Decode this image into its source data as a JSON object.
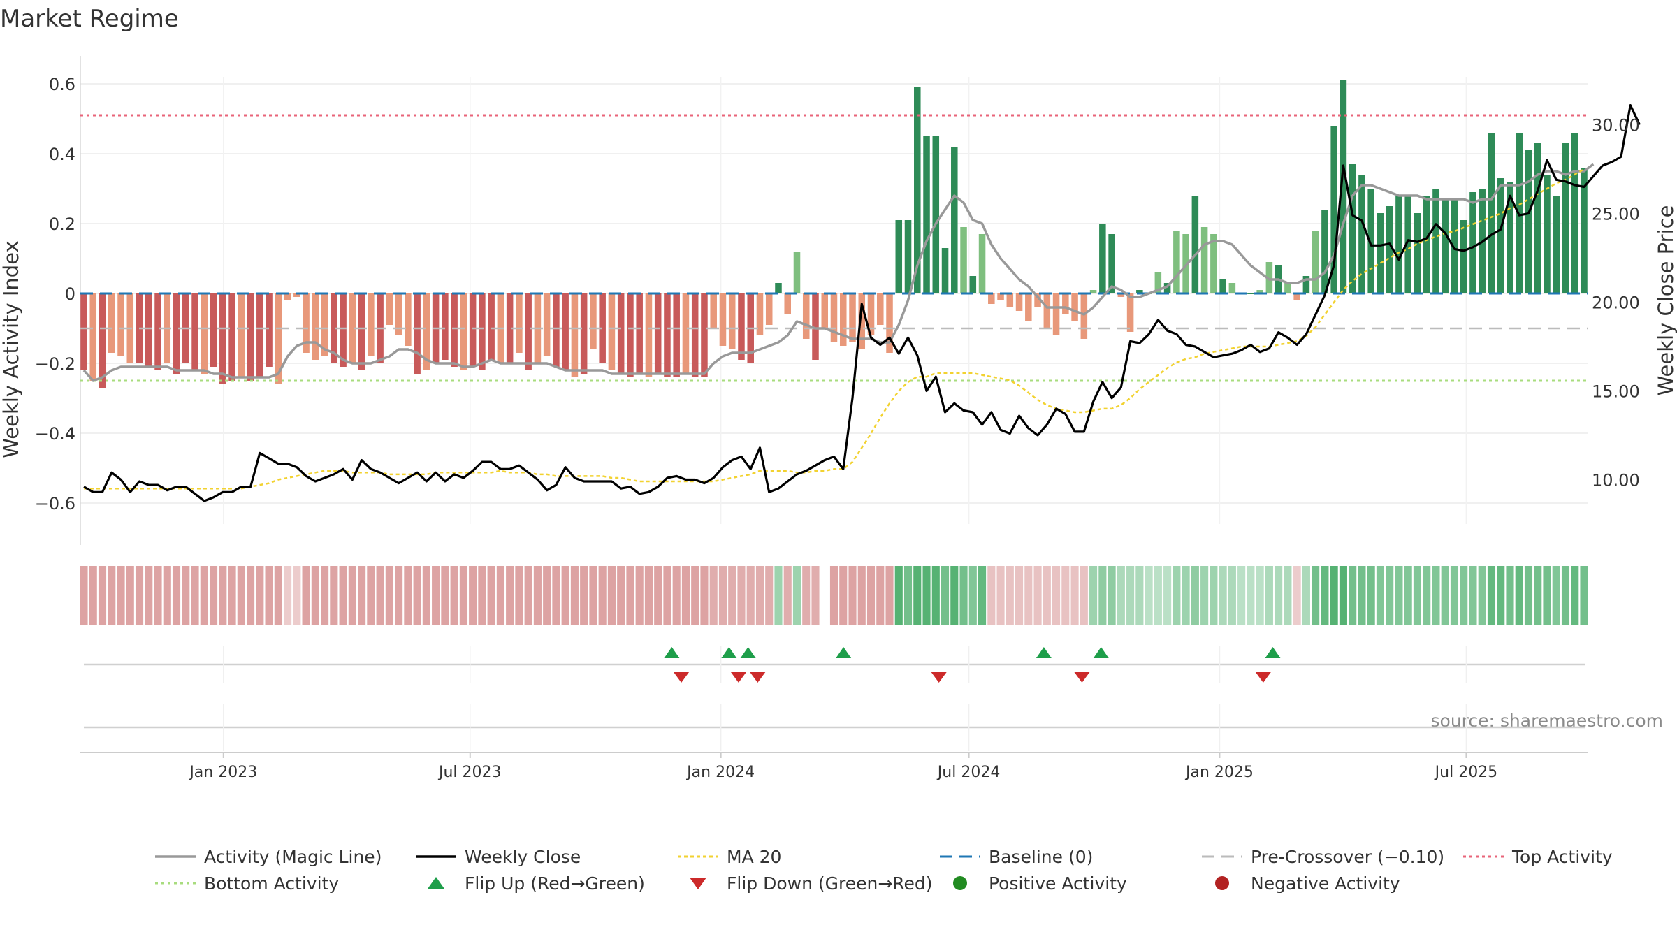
{
  "chart_data": {
    "type": "bar",
    "title": "Market Regime",
    "source": "source: sharemaestro.com",
    "left_axis": {
      "label": "Weekly Activity Index",
      "range": [
        -0.66,
        0.62
      ],
      "ticks": [
        0.6,
        0.4,
        0.2,
        0,
        -0.2,
        -0.4,
        -0.6
      ],
      "tick_labels": [
        "0.6",
        "0.4",
        "0.2",
        "0",
        "−0.2",
        "−0.4",
        "−0.6"
      ]
    },
    "right_axis": {
      "label": "Weekly Close Price",
      "range": [
        7.5,
        32.7
      ],
      "ticks": [
        30,
        25,
        20,
        15,
        10
      ],
      "tick_labels": [
        "30.00",
        "25.00",
        "20.00",
        "15.00",
        "10.00"
      ]
    },
    "x_axis": {
      "start": "2022-09-18",
      "end": "2025-09-28",
      "ticks": [
        {
          "date": "2023-01-01",
          "label": "Jan 2023"
        },
        {
          "date": "2023-07-01",
          "label": "Jul 2023"
        },
        {
          "date": "2024-01-01",
          "label": "Jan 2024"
        },
        {
          "date": "2024-07-01",
          "label": "Jul 2024"
        },
        {
          "date": "2025-01-01",
          "label": "Jan 2025"
        },
        {
          "date": "2025-07-01",
          "label": "Jul 2025"
        }
      ]
    },
    "reference_lines": {
      "top_activity": 0.51,
      "bottom_activity": -0.25,
      "baseline": 0,
      "pre_crossover": -0.1
    },
    "colors": {
      "strong_positive": "#2e8b57",
      "weak_positive": "#7fbf7f",
      "strong_negative": "#c85a5a",
      "weak_negative": "#e8987a",
      "magic_line": "#999999",
      "close": "#000000",
      "ma20": "#f2d230",
      "baseline": "#1f77b4",
      "pre_crossover": "#bbbbbb",
      "top": "#e8647a",
      "bottom": "#a8dc7e",
      "flip_up": "#1e9e4a",
      "flip_down": "#cc2a2a",
      "positive_dot": "#228b22",
      "negative_dot": "#b22222"
    },
    "weekly_activity": [
      -0.22,
      -0.25,
      -0.27,
      -0.17,
      -0.18,
      -0.2,
      -0.2,
      -0.21,
      -0.22,
      -0.2,
      -0.23,
      -0.2,
      -0.22,
      -0.23,
      -0.21,
      -0.26,
      -0.25,
      -0.24,
      -0.25,
      -0.24,
      -0.21,
      -0.26,
      -0.02,
      -0.01,
      -0.17,
      -0.19,
      -0.18,
      -0.2,
      -0.21,
      -0.2,
      -0.22,
      -0.18,
      -0.2,
      -0.09,
      -0.12,
      -0.15,
      -0.23,
      -0.22,
      -0.2,
      -0.19,
      -0.21,
      -0.22,
      -0.21,
      -0.22,
      -0.19,
      -0.2,
      -0.2,
      -0.17,
      -0.22,
      -0.2,
      -0.18,
      -0.21,
      -0.22,
      -0.24,
      -0.23,
      -0.16,
      -0.2,
      -0.22,
      -0.23,
      -0.24,
      -0.23,
      -0.24,
      -0.23,
      -0.24,
      -0.24,
      -0.23,
      -0.24,
      -0.24,
      -0.1,
      -0.15,
      -0.16,
      -0.19,
      -0.2,
      -0.12,
      -0.09,
      0.03,
      -0.06,
      0.12,
      -0.13,
      -0.19,
      -0.1,
      -0.14,
      -0.15,
      -0.14,
      -0.16,
      -0.12,
      -0.09,
      -0.17,
      0.21,
      0.21,
      0.59,
      0.45,
      0.45,
      0.13,
      0.42,
      0.19,
      0.05,
      0.17,
      -0.03,
      -0.02,
      -0.04,
      -0.05,
      -0.08,
      -0.04,
      -0.1,
      -0.12,
      -0.06,
      -0.08,
      -0.13,
      0.01,
      0.2,
      0.17,
      -0.01,
      -0.11,
      0.01,
      0.0,
      0.06,
      0.03,
      0.18,
      0.17,
      0.28,
      0.19,
      0.17,
      0.04,
      0.03,
      0.0,
      0.0,
      0.01,
      0.09,
      0.08,
      0.03,
      -0.02,
      0.05,
      0.18,
      0.24,
      0.48,
      0.61,
      0.37,
      0.34,
      0.3,
      0.23,
      0.25,
      0.28,
      0.28,
      0.23,
      0.28,
      0.3,
      0.27,
      0.27,
      0.21,
      0.29,
      0.3,
      0.46,
      0.33,
      0.32,
      0.46,
      0.41,
      0.43,
      0.34,
      0.28,
      0.43,
      0.46,
      0.36
    ],
    "magic_line": [
      -0.22,
      -0.25,
      -0.24,
      -0.22,
      -0.21,
      -0.21,
      -0.21,
      -0.21,
      -0.21,
      -0.21,
      -0.22,
      -0.22,
      -0.22,
      -0.22,
      -0.23,
      -0.23,
      -0.24,
      -0.24,
      -0.24,
      -0.24,
      -0.24,
      -0.23,
      -0.18,
      -0.15,
      -0.14,
      -0.14,
      -0.16,
      -0.17,
      -0.19,
      -0.2,
      -0.2,
      -0.2,
      -0.19,
      -0.18,
      -0.16,
      -0.16,
      -0.17,
      -0.19,
      -0.2,
      -0.2,
      -0.2,
      -0.21,
      -0.21,
      -0.2,
      -0.19,
      -0.2,
      -0.2,
      -0.2,
      -0.2,
      -0.2,
      -0.2,
      -0.21,
      -0.22,
      -0.22,
      -0.22,
      -0.22,
      -0.22,
      -0.23,
      -0.23,
      -0.23,
      -0.23,
      -0.23,
      -0.23,
      -0.23,
      -0.23,
      -0.23,
      -0.23,
      -0.23,
      -0.2,
      -0.18,
      -0.17,
      -0.17,
      -0.17,
      -0.16,
      -0.15,
      -0.14,
      -0.12,
      -0.08,
      -0.09,
      -0.1,
      -0.1,
      -0.11,
      -0.12,
      -0.13,
      -0.13,
      -0.13,
      -0.14,
      -0.14,
      -0.09,
      -0.02,
      0.08,
      0.15,
      0.2,
      0.24,
      0.28,
      0.26,
      0.21,
      0.2,
      0.14,
      0.1,
      0.07,
      0.04,
      0.02,
      -0.01,
      -0.04,
      -0.04,
      -0.04,
      -0.05,
      -0.06,
      -0.04,
      -0.01,
      0.02,
      0.01,
      -0.01,
      -0.01,
      0.0,
      0.01,
      0.02,
      0.05,
      0.08,
      0.11,
      0.14,
      0.15,
      0.15,
      0.14,
      0.11,
      0.08,
      0.06,
      0.04,
      0.04,
      0.03,
      0.03,
      0.04,
      0.04,
      0.06,
      0.11,
      0.2,
      0.28,
      0.31,
      0.31,
      0.3,
      0.29,
      0.28,
      0.28,
      0.28,
      0.27,
      0.27,
      0.27,
      0.27,
      0.27,
      0.26,
      0.27,
      0.27,
      0.31,
      0.31,
      0.31,
      0.32,
      0.34,
      0.35,
      0.35,
      0.34,
      0.35,
      0.35,
      0.37
    ],
    "weekly_close": [
      9.6,
      9.3,
      9.3,
      10.4,
      10.0,
      9.3,
      9.9,
      9.7,
      9.7,
      9.4,
      9.6,
      9.6,
      9.2,
      8.8,
      9.0,
      9.3,
      9.3,
      9.6,
      9.6,
      11.5,
      11.2,
      10.9,
      10.9,
      10.7,
      10.2,
      9.9,
      10.1,
      10.3,
      10.6,
      10.0,
      11.1,
      10.6,
      10.4,
      10.1,
      9.8,
      10.1,
      10.4,
      9.9,
      10.4,
      9.9,
      10.3,
      10.1,
      10.5,
      11.0,
      11.0,
      10.6,
      10.6,
      10.8,
      10.4,
      10.0,
      9.4,
      9.7,
      10.7,
      10.1,
      9.9,
      9.9,
      9.9,
      9.9,
      9.5,
      9.6,
      9.2,
      9.3,
      9.6,
      10.1,
      10.2,
      10.0,
      10.0,
      9.8,
      10.1,
      10.7,
      11.1,
      11.3,
      10.6,
      11.8,
      9.3,
      9.5,
      9.9,
      10.3,
      10.5,
      10.8,
      11.1,
      11.3,
      10.6,
      14.6,
      19.9,
      18.0,
      17.6,
      18.0,
      17.1,
      18.0,
      17.0,
      15.0,
      15.8,
      13.8,
      14.3,
      13.9,
      13.8,
      13.1,
      13.8,
      12.8,
      12.6,
      13.6,
      12.9,
      12.5,
      13.1,
      14.0,
      13.7,
      12.7,
      12.7,
      14.4,
      15.5,
      14.6,
      15.2,
      17.8,
      17.7,
      18.2,
      19.0,
      18.4,
      18.2,
      17.6,
      17.5,
      17.2,
      16.9,
      17.0,
      17.1,
      17.3,
      17.6,
      17.2,
      17.4,
      18.3,
      18.0,
      17.6,
      18.2,
      19.3,
      20.4,
      22.1,
      27.7,
      24.9,
      24.6,
      23.2,
      23.2,
      23.3,
      22.4,
      23.5,
      23.4,
      23.6,
      24.4,
      23.9,
      23.0,
      22.9,
      23.1,
      23.4,
      23.8,
      24.1,
      26.0,
      24.9,
      25.0,
      26.3,
      28.0,
      26.9,
      26.8,
      26.6,
      26.5,
      27.1,
      27.7,
      27.9,
      28.2,
      31.1,
      30.0
    ],
    "ma20": [
      9.5,
      9.5,
      9.5,
      9.5,
      9.5,
      9.5,
      9.5,
      9.5,
      9.5,
      9.5,
      9.5,
      9.5,
      9.5,
      9.5,
      9.5,
      9.5,
      9.5,
      9.5,
      9.6,
      9.7,
      9.8,
      10.0,
      10.1,
      10.2,
      10.3,
      10.4,
      10.5,
      10.5,
      10.5,
      10.4,
      10.4,
      10.4,
      10.4,
      10.3,
      10.3,
      10.3,
      10.3,
      10.3,
      10.4,
      10.4,
      10.4,
      10.4,
      10.4,
      10.4,
      10.4,
      10.5,
      10.4,
      10.4,
      10.4,
      10.3,
      10.3,
      10.2,
      10.2,
      10.2,
      10.2,
      10.2,
      10.2,
      10.1,
      10.1,
      10.0,
      9.9,
      9.9,
      9.9,
      9.9,
      9.9,
      9.9,
      9.9,
      9.9,
      9.9,
      10.0,
      10.1,
      10.2,
      10.3,
      10.5,
      10.5,
      10.5,
      10.5,
      10.4,
      10.4,
      10.5,
      10.5,
      10.6,
      10.6,
      11.0,
      11.8,
      12.6,
      13.5,
      14.3,
      15.0,
      15.5,
      15.8,
      15.8,
      16.0,
      16.0,
      16.0,
      16.0,
      16.0,
      15.9,
      15.8,
      15.7,
      15.6,
      15.3,
      14.9,
      14.5,
      14.2,
      14.0,
      13.9,
      13.8,
      13.8,
      13.9,
      14.0,
      14.0,
      14.2,
      14.6,
      15.1,
      15.5,
      15.9,
      16.3,
      16.6,
      16.8,
      16.9,
      17.1,
      17.2,
      17.3,
      17.4,
      17.5,
      17.5,
      17.5,
      17.5,
      17.6,
      17.7,
      17.8,
      18.1,
      18.6,
      19.3,
      20.0,
      20.7,
      21.2,
      21.6,
      21.9,
      22.2,
      22.5,
      22.8,
      23.0,
      23.3,
      23.5,
      23.7,
      23.9,
      24.0,
      24.2,
      24.4,
      24.6,
      24.8,
      25.0,
      25.3,
      25.5,
      25.8,
      26.1,
      26.4,
      26.7,
      26.9,
      27.2,
      27.5
    ],
    "regime_strip": [
      -0.7,
      -0.7,
      -0.7,
      -0.7,
      -0.7,
      -0.7,
      -0.7,
      -0.7,
      -0.7,
      -0.7,
      -0.7,
      -0.7,
      -0.7,
      -0.7,
      -0.7,
      -0.7,
      -0.7,
      -0.7,
      -0.7,
      -0.7,
      -0.7,
      -0.7,
      -0.3,
      -0.3,
      -0.7,
      -0.7,
      -0.7,
      -0.7,
      -0.7,
      -0.7,
      -0.7,
      -0.7,
      -0.7,
      -0.7,
      -0.7,
      -0.7,
      -0.7,
      -0.7,
      -0.7,
      -0.7,
      -0.7,
      -0.7,
      -0.7,
      -0.7,
      -0.7,
      -0.7,
      -0.7,
      -0.7,
      -0.7,
      -0.7,
      -0.7,
      -0.7,
      -0.7,
      -0.7,
      -0.7,
      -0.7,
      -0.7,
      -0.7,
      -0.7,
      -0.7,
      -0.7,
      -0.7,
      -0.7,
      -0.7,
      -0.7,
      -0.7,
      -0.7,
      -0.7,
      -0.6,
      -0.6,
      -0.6,
      -0.6,
      -0.6,
      -0.6,
      -0.6,
      0.5,
      -0.6,
      0.5,
      -0.6,
      -0.6,
      null,
      -0.7,
      -0.7,
      -0.7,
      -0.7,
      -0.7,
      -0.7,
      -0.7,
      1.0,
      0.8,
      1.2,
      1.0,
      1.0,
      0.8,
      1.2,
      0.8,
      0.7,
      0.9,
      -0.4,
      -0.4,
      -0.4,
      -0.4,
      -0.4,
      -0.4,
      -0.4,
      -0.4,
      -0.4,
      -0.4,
      -0.4,
      0.5,
      0.6,
      0.6,
      0.4,
      0.4,
      0.4,
      0.3,
      0.3,
      0.3,
      0.5,
      0.5,
      0.6,
      0.5,
      0.5,
      0.4,
      0.4,
      0.3,
      0.3,
      0.3,
      0.4,
      0.4,
      0.4,
      -0.3,
      0.4,
      0.8,
      0.9,
      1.2,
      1.3,
      0.8,
      0.8,
      0.8,
      0.7,
      0.7,
      0.7,
      0.7,
      0.7,
      0.7,
      0.7,
      0.7,
      0.7,
      0.7,
      0.7,
      0.7,
      0.9,
      0.9,
      0.8,
      0.9,
      0.8,
      0.8,
      0.8,
      0.7,
      0.8,
      0.9,
      0.8
    ],
    "flip_up_dates": [
      "2023-11-26",
      "2024-01-07",
      "2024-01-21",
      "2024-03-31",
      "2024-08-25",
      "2024-10-06",
      "2025-02-09"
    ],
    "flip_down_dates": [
      "2023-12-03",
      "2024-01-14",
      "2024-01-28",
      "2024-06-09",
      "2024-09-22",
      "2025-02-02"
    ],
    "legend": [
      {
        "key": "magic",
        "label": "Activity (Magic Line)"
      },
      {
        "key": "close",
        "label": "Weekly Close"
      },
      {
        "key": "ma20",
        "label": "MA 20"
      },
      {
        "key": "baseline",
        "label": "Baseline (0)"
      },
      {
        "key": "precross",
        "label": "Pre-Crossover (−0.10)"
      },
      {
        "key": "top",
        "label": "Top Activity"
      },
      {
        "key": "bottom",
        "label": "Bottom Activity"
      },
      {
        "key": "flipup",
        "label": "Flip Up (Red→Green)"
      },
      {
        "key": "flipdown",
        "label": "Flip Down (Green→Red)"
      },
      {
        "key": "posdot",
        "label": "Positive Activity"
      },
      {
        "key": "negdot",
        "label": "Negative Activity"
      }
    ]
  }
}
